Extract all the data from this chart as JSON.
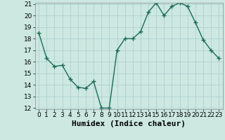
{
  "x": [
    0,
    1,
    2,
    3,
    4,
    5,
    6,
    7,
    8,
    9,
    10,
    11,
    12,
    13,
    14,
    15,
    16,
    17,
    18,
    19,
    20,
    21,
    22,
    23
  ],
  "y": [
    18.5,
    16.3,
    15.6,
    15.7,
    14.5,
    13.8,
    13.7,
    14.3,
    12.0,
    12.0,
    17.0,
    18.0,
    18.0,
    18.6,
    20.3,
    21.1,
    20.0,
    20.8,
    21.1,
    20.8,
    19.4,
    17.9,
    17.0,
    16.3
  ],
  "line_color": "#1a6b5a",
  "marker": "+",
  "marker_size": 4,
  "marker_lw": 1.0,
  "line_width": 1.0,
  "bg_color": "#cce8e0",
  "grid_color": "#aacccc",
  "xlabel": "Humidex (Indice chaleur)",
  "ylim": [
    12,
    21
  ],
  "xlim": [
    -0.5,
    23.5
  ],
  "yticks": [
    12,
    13,
    14,
    15,
    16,
    17,
    18,
    19,
    20,
    21
  ],
  "xticks": [
    0,
    1,
    2,
    3,
    4,
    5,
    6,
    7,
    8,
    9,
    10,
    11,
    12,
    13,
    14,
    15,
    16,
    17,
    18,
    19,
    20,
    21,
    22,
    23
  ],
  "tick_label_fontsize": 6.5,
  "xlabel_fontsize": 8.0
}
